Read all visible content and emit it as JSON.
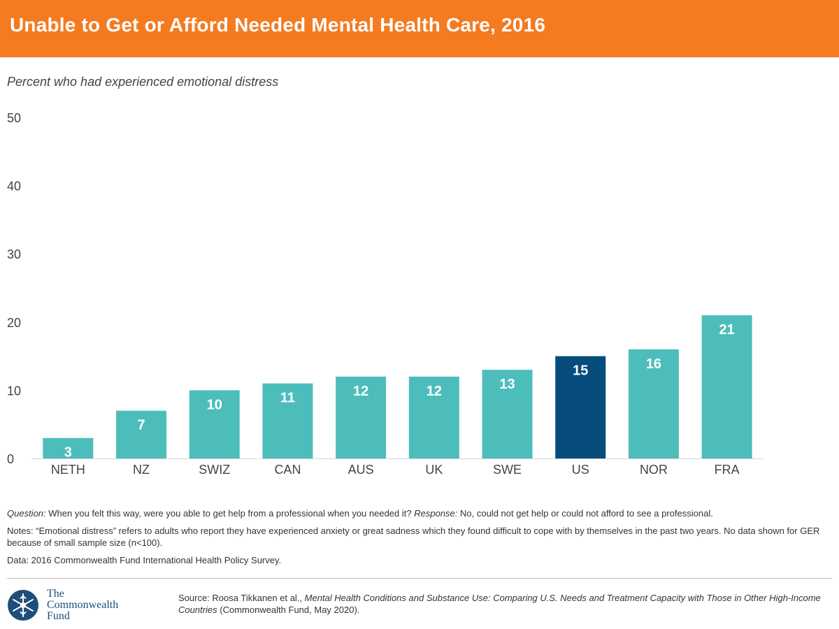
{
  "header": {
    "title": "Unable to Get or Afford Needed Mental Health Care, 2016"
  },
  "colors": {
    "header_bg": "#f47b20",
    "bar_default": "#4dbdbc",
    "bar_highlight": "#064c7d",
    "label_text": "#ffffff"
  },
  "chart_data": {
    "type": "bar",
    "title": "Unable to Get or Afford Needed Mental Health Care, 2016",
    "ylabel": "Percent who had experienced emotional distress",
    "xlabel": "",
    "categories": [
      "NETH",
      "NZ",
      "SWIZ",
      "CAN",
      "AUS",
      "UK",
      "SWE",
      "US",
      "NOR",
      "FRA"
    ],
    "values": [
      3,
      7,
      10,
      11,
      12,
      12,
      13,
      15,
      16,
      21
    ],
    "data_labels": [
      "3",
      "7",
      "10",
      "11",
      "12",
      "12",
      "13",
      "15",
      "16",
      "21"
    ],
    "highlight_category": "US",
    "ylim": [
      0,
      50
    ],
    "yticks": [
      0,
      10,
      20,
      30,
      40,
      50
    ],
    "grid": false,
    "legend": "none"
  },
  "notes": {
    "question_label": "Question:",
    "question_text": " When you felt this way, were you able to get help from a professional when you needed it? ",
    "response_label": "Response:",
    "response_text": " No, could not get help or could not afford to see a professional.",
    "notes_text": "Notes: “Emotional distress” refers to adults who report they have experienced anxiety or great sadness which they found difficult to cope with by themselves in the past two years. No data shown for GER because of small sample size (n<100).",
    "data_text": "Data: 2016 Commonwealth Fund International Health Policy Survey."
  },
  "footer": {
    "logo_line1": "The",
    "logo_line2": "Commonwealth",
    "logo_line3": "Fund",
    "logo_icon": "snowflake-seal-icon",
    "source_prefix": "Source: Roosa Tikkanen et al., ",
    "source_title": "Mental Health Conditions and Substance Use: Comparing U.S. Needs and Treatment Capacity with Those in Other High-Income Countries",
    "source_suffix": " (Commonwealth Fund, May 2020)."
  }
}
